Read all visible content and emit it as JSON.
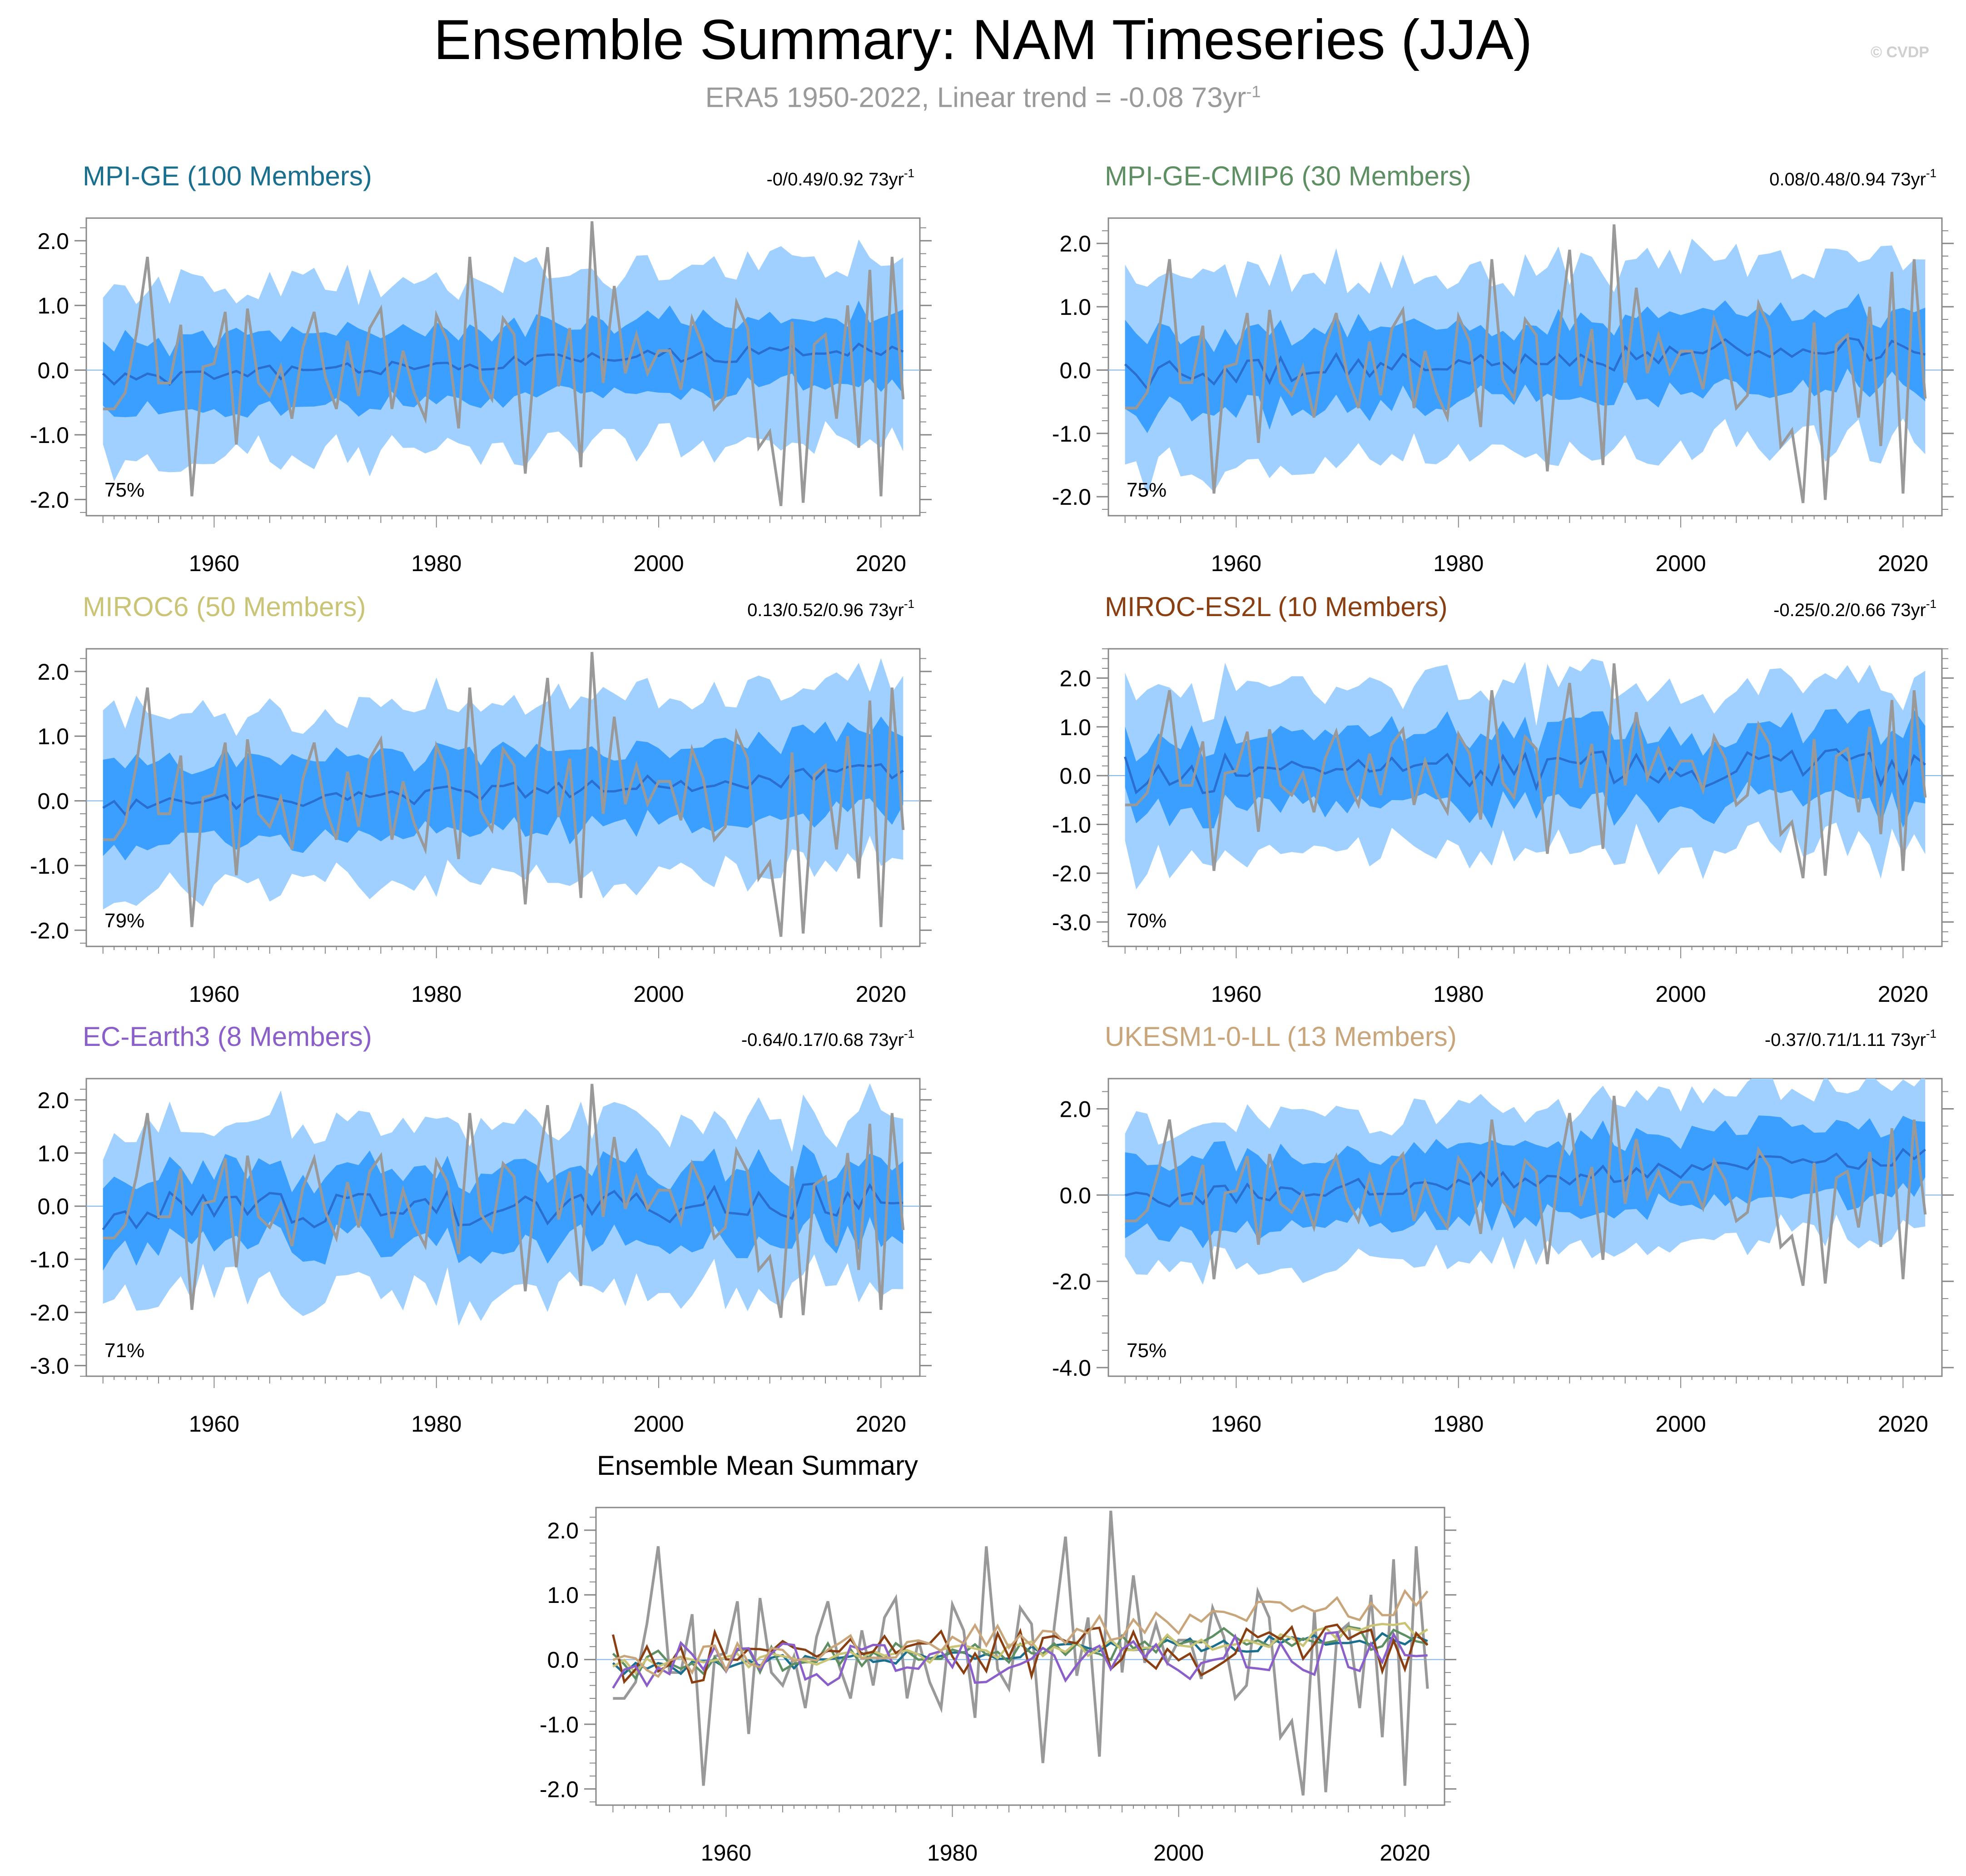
{
  "title": "Ensemble Summary: NAM Timeseries (JJA)",
  "subtitle": {
    "text": "ERA5 1950-2022, Linear trend = -0.08 73yr",
    "superscript": "-1"
  },
  "watermark": "© CVDP",
  "colors": {
    "inner_band": "#3a9fff",
    "outer_band": "#9fd0ff",
    "ens_mean": "#2a6fcf",
    "obs": "#999999",
    "axis": "#888888"
  },
  "chart_data": [
    {
      "type": "area",
      "title": "MPI-GE (100 Members)",
      "title_color": "#1a6f8f",
      "trend": "-0/0.49/0.92 73yr",
      "trend_sup": "-1",
      "pct": "75%",
      "ylim": [
        -2.25,
        2.35
      ],
      "yticks": [
        "2.0",
        "1.0",
        "0.0",
        "-1.0",
        "-2.0"
      ],
      "ytick_values": [
        2,
        1,
        0,
        -1,
        -2
      ],
      "seed": 11,
      "mean_drift": [
        -0.15,
        0.35
      ],
      "inner": 0.55,
      "outer": 1.25,
      "noise": 0.12
    },
    {
      "type": "area",
      "title": "MPI-GE-CMIP6 (30 Members)",
      "title_color": "#5e8f62",
      "trend": "0.08/0.48/0.94 73yr",
      "trend_sup": "-1",
      "pct": "75%",
      "ylim": [
        -2.3,
        2.4
      ],
      "yticks": [
        "2.0",
        "1.0",
        "0.0",
        "-1.0",
        "-2.0"
      ],
      "ytick_values": [
        2,
        1,
        0,
        -1,
        -2
      ],
      "seed": 23,
      "mean_drift": [
        -0.1,
        0.4
      ],
      "inner": 0.6,
      "outer": 1.35,
      "noise": 0.22
    },
    {
      "type": "area",
      "title": "MIROC6 (50 Members)",
      "title_color": "#c9c476",
      "trend": "0.13/0.52/0.96 73yr",
      "trend_sup": "-1",
      "pct": "79%",
      "ylim": [
        -2.25,
        2.35
      ],
      "yticks": [
        "2.0",
        "1.0",
        "0.0",
        "-1.0",
        "-2.0"
      ],
      "ytick_values": [
        2,
        1,
        0,
        -1,
        -2
      ],
      "seed": 37,
      "mean_drift": [
        -0.15,
        0.45
      ],
      "inner": 0.6,
      "outer": 1.3,
      "noise": 0.15
    },
    {
      "type": "area",
      "title": "MIROC-ES2L (10 Members)",
      "title_color": "#8a3f12",
      "trend": "-0.25/0.2/0.66 73yr",
      "trend_sup": "-1",
      "pct": "70%",
      "ylim": [
        -3.5,
        2.6
      ],
      "yticks": [
        "2.0",
        "1.0",
        "0.0",
        "-1.0",
        "-2.0",
        "-3.0"
      ],
      "ytick_values": [
        2,
        1,
        0,
        -1,
        -2,
        -3
      ],
      "seed": 41,
      "mean_drift": [
        0.0,
        0.2
      ],
      "inner": 0.75,
      "outer": 1.55,
      "noise": 0.4
    },
    {
      "type": "area",
      "title": "EC-Earth3 (8 Members)",
      "title_color": "#8a5fc9",
      "trend": "-0.64/0.17/0.68 73yr",
      "trend_sup": "-1",
      "pct": "71%",
      "ylim": [
        -3.2,
        2.4
      ],
      "yticks": [
        "2.0",
        "1.0",
        "0.0",
        "-1.0",
        "-2.0",
        "-3.0"
      ],
      "ytick_values": [
        2,
        1,
        0,
        -1,
        -2,
        -3
      ],
      "seed": 53,
      "mean_drift": [
        -0.1,
        0.1
      ],
      "inner": 0.7,
      "outer": 1.45,
      "noise": 0.35
    },
    {
      "type": "area",
      "title": "UKESM1-0-LL (13 Members)",
      "title_color": "#c8a57a",
      "trend": "-0.37/0.71/1.11 73yr",
      "trend_sup": "-1",
      "pct": "75%",
      "ylim": [
        -4.2,
        2.7
      ],
      "yticks": [
        "2.0",
        "0.0",
        "-2.0",
        "-4.0"
      ],
      "ytick_values": [
        2,
        0,
        -2,
        -4
      ],
      "seed": 67,
      "mean_drift": [
        -0.1,
        0.9
      ],
      "inner": 0.85,
      "outer": 1.6,
      "noise": 0.22
    }
  ],
  "xaxis": {
    "ticks": [
      "1960",
      "1980",
      "2000",
      "2020"
    ],
    "tick_values": [
      1960,
      1980,
      2000,
      2020
    ],
    "xlim": [
      1948.5,
      2023.5
    ]
  },
  "years": {
    "start": 1950,
    "end": 2022
  },
  "obs_series": [
    -0.6,
    -0.6,
    -0.35,
    0.55,
    1.75,
    -0.2,
    -0.2,
    0.7,
    -1.95,
    0.05,
    0.1,
    0.9,
    -1.15,
    0.95,
    -0.2,
    -0.4,
    0.05,
    -0.75,
    0.35,
    0.9,
    -0.1,
    -0.6,
    0.45,
    -0.4,
    0.65,
    0.95,
    -0.6,
    0.3,
    -0.35,
    -0.75,
    0.85,
    0.45,
    -0.9,
    1.75,
    -0.15,
    -0.45,
    0.8,
    0.55,
    -1.6,
    0.5,
    1.9,
    -0.25,
    0.65,
    -1.5,
    2.3,
    -0.2,
    1.3,
    -0.05,
    0.55,
    -0.05,
    0.3,
    0.3,
    -0.3,
    0.8,
    0.35,
    -0.6,
    -0.4,
    1.05,
    0.65,
    -1.2,
    -0.95,
    -2.1,
    0.75,
    -2.05,
    0.4,
    0.55,
    -0.75,
    1.0,
    -1.2,
    1.55,
    -1.95,
    1.75,
    -0.45
  ],
  "mean_summary": {
    "title": "Ensemble Mean Summary",
    "ylim": [
      -2.25,
      2.35
    ],
    "yticks": [
      "2.0",
      "1.0",
      "0.0",
      "-1.0",
      "-2.0"
    ],
    "ytick_values": [
      2,
      1,
      0,
      -1,
      -2
    ]
  }
}
